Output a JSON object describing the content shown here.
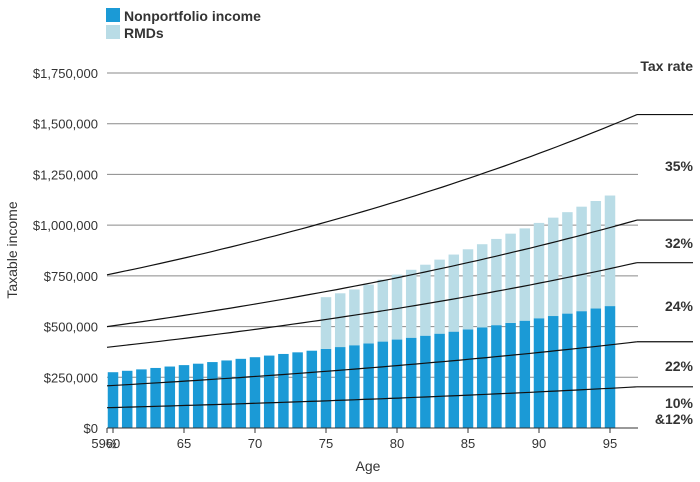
{
  "chart_data": {
    "type": "bar",
    "stacked": true,
    "xlabel": "Age",
    "ylabel": "Taxable income",
    "ylim": [
      0,
      1750000
    ],
    "yticks": [
      0,
      250000,
      500000,
      750000,
      1000000,
      1250000,
      1500000,
      1750000
    ],
    "ytick_labels": [
      "$0",
      "$250,000",
      "$500,000",
      "$750,000",
      "$1,000,000",
      "$1,250,000",
      "$1,500,000",
      "$1,750,000"
    ],
    "xlim": [
      59.5,
      95
    ],
    "xticks": [
      59.5,
      60,
      65,
      70,
      75,
      80,
      85,
      90,
      95
    ],
    "xtick_labels": [
      "59½",
      "60",
      "65",
      "70",
      "75",
      "80",
      "85",
      "90",
      "95"
    ],
    "grid": "horizontal",
    "legend": "top-left",
    "ages": [
      60,
      61,
      62,
      63,
      64,
      65,
      66,
      67,
      68,
      69,
      70,
      71,
      72,
      73,
      74,
      75,
      76,
      77,
      78,
      79,
      80,
      81,
      82,
      83,
      84,
      85,
      86,
      87,
      88,
      89,
      90,
      91,
      92,
      93,
      94,
      95
    ],
    "series": [
      {
        "name": "Nonportfolio income",
        "color": "#1b9ad6",
        "values": [
          275000,
          282000,
          289000,
          296000,
          303000,
          310000,
          317000,
          325000,
          333000,
          341000,
          349000,
          357000,
          365000,
          373000,
          381000,
          390000,
          399000,
          408000,
          417000,
          426000,
          436000,
          445000,
          455000,
          465000,
          475000,
          486000,
          496000,
          507000,
          518000,
          529000,
          541000,
          552000,
          564000,
          576000,
          589000,
          601000
        ]
      },
      {
        "name": "RMDs",
        "color": "#b9dce6",
        "values": [
          0,
          0,
          0,
          0,
          0,
          0,
          0,
          0,
          0,
          0,
          0,
          0,
          0,
          0,
          0,
          255000,
          265000,
          275000,
          290000,
          305000,
          320000,
          335000,
          350000,
          365000,
          380000,
          395000,
          410000,
          425000,
          440000,
          455000,
          470000,
          485000,
          500000,
          515000,
          530000,
          545000
        ]
      }
    ],
    "tax_rate": {
      "title": "Tax rate",
      "labels": [
        "35%",
        "32%",
        "24%",
        "22%",
        "10%",
        "&12%"
      ],
      "curves": [
        {
          "name": "35% threshold",
          "start": 755000,
          "end": 1545000
        },
        {
          "name": "32% threshold",
          "start": 500000,
          "end": 1025000
        },
        {
          "name": "24% threshold",
          "start": 398000,
          "end": 815000
        },
        {
          "name": "22% threshold",
          "start": 208000,
          "end": 425000
        },
        {
          "name": "12% threshold",
          "start": 100000,
          "end": 203000
        }
      ]
    }
  }
}
